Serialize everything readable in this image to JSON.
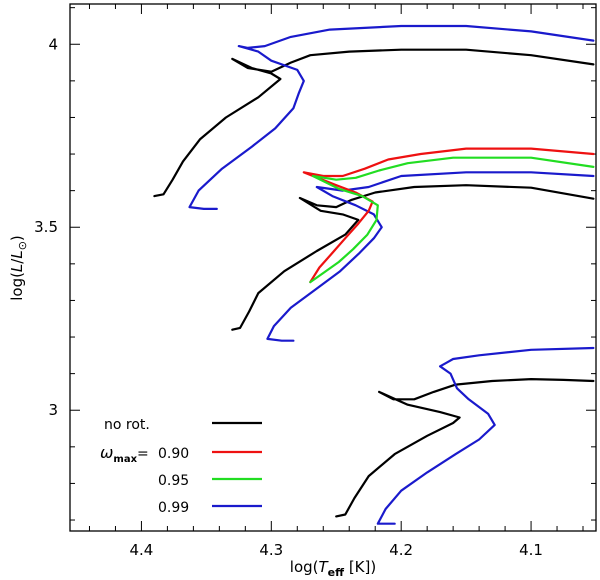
{
  "chart_data": {
    "type": "line",
    "title": "",
    "xlabel_prefix": "log(",
    "xlabel_var": "T",
    "xlabel_sub": "eff",
    "xlabel_suffix": " [K])",
    "ylabel_prefix": "log(",
    "ylabel_var": "L",
    "ylabel_mid": "/",
    "ylabel_var2": "L",
    "ylabel_sub": "⊙",
    "ylabel_suffix": ")",
    "xlim": [
      4.455,
      4.05
    ],
    "ylim": [
      2.67,
      4.11
    ],
    "xticks": [
      4.4,
      4.3,
      4.2,
      4.1
    ],
    "xtick_labels": [
      "4.4",
      "4.3",
      "4.2",
      "4.1"
    ],
    "yticks": [
      3.0,
      3.5,
      4.0
    ],
    "ytick_labels": [
      "3",
      "3.5",
      "4"
    ],
    "legend": {
      "placement": "bottom-left",
      "entries": [
        {
          "label": "no rot.",
          "prefix": "",
          "color": "#000000"
        },
        {
          "label": "0.90",
          "prefix": "ω",
          "prefix_sub": "max",
          "prefix_eq": "=",
          "color": "#ee1111"
        },
        {
          "label": "0.95",
          "prefix": "",
          "color": "#22dd22"
        },
        {
          "label": "0.99",
          "prefix": "",
          "color": "#1a1acc"
        }
      ]
    },
    "series": [
      {
        "name": "no rot. (upper)",
        "color": "#000000",
        "points": [
          [
            4.39,
            3.585
          ],
          [
            4.383,
            3.59
          ],
          [
            4.376,
            3.63
          ],
          [
            4.368,
            3.68
          ],
          [
            4.355,
            3.74
          ],
          [
            4.335,
            3.8
          ],
          [
            4.31,
            3.855
          ],
          [
            4.293,
            3.905
          ],
          [
            4.3,
            3.92
          ],
          [
            4.315,
            3.935
          ],
          [
            4.33,
            3.96
          ],
          [
            4.318,
            3.935
          ],
          [
            4.3,
            3.925
          ],
          [
            4.285,
            3.95
          ],
          [
            4.27,
            3.97
          ],
          [
            4.24,
            3.98
          ],
          [
            4.2,
            3.985
          ],
          [
            4.15,
            3.985
          ],
          [
            4.1,
            3.97
          ],
          [
            4.052,
            3.945
          ]
        ]
      },
      {
        "name": "no rot. (middle)",
        "color": "#000000",
        "points": [
          [
            4.33,
            3.22
          ],
          [
            4.324,
            3.225
          ],
          [
            4.317,
            3.27
          ],
          [
            4.31,
            3.32
          ],
          [
            4.29,
            3.38
          ],
          [
            4.265,
            3.435
          ],
          [
            4.243,
            3.48
          ],
          [
            4.233,
            3.52
          ],
          [
            4.245,
            3.535
          ],
          [
            4.262,
            3.545
          ],
          [
            4.278,
            3.58
          ],
          [
            4.265,
            3.56
          ],
          [
            4.25,
            3.555
          ],
          [
            4.238,
            3.575
          ],
          [
            4.22,
            3.595
          ],
          [
            4.19,
            3.61
          ],
          [
            4.15,
            3.615
          ],
          [
            4.1,
            3.608
          ],
          [
            4.052,
            3.578
          ]
        ]
      },
      {
        "name": "no rot. (lower)",
        "color": "#000000",
        "points": [
          [
            4.25,
            2.71
          ],
          [
            4.243,
            2.715
          ],
          [
            4.236,
            2.76
          ],
          [
            4.225,
            2.82
          ],
          [
            4.205,
            2.88
          ],
          [
            4.18,
            2.93
          ],
          [
            4.16,
            2.965
          ],
          [
            4.155,
            2.98
          ],
          [
            4.17,
            2.995
          ],
          [
            4.195,
            3.015
          ],
          [
            4.217,
            3.05
          ],
          [
            4.206,
            3.03
          ],
          [
            4.19,
            3.03
          ],
          [
            4.175,
            3.05
          ],
          [
            4.158,
            3.07
          ],
          [
            4.13,
            3.08
          ],
          [
            4.1,
            3.085
          ],
          [
            4.075,
            3.083
          ],
          [
            4.052,
            3.08
          ]
        ]
      },
      {
        "name": "ω=0.99 (upper)",
        "color": "#1a1acc",
        "points": [
          [
            4.342,
            3.55
          ],
          [
            4.352,
            3.55
          ],
          [
            4.363,
            3.555
          ],
          [
            4.356,
            3.6
          ],
          [
            4.338,
            3.66
          ],
          [
            4.315,
            3.72
          ],
          [
            4.297,
            3.77
          ],
          [
            4.283,
            3.825
          ],
          [
            4.279,
            3.865
          ],
          [
            4.275,
            3.9
          ],
          [
            4.28,
            3.93
          ],
          [
            4.3,
            3.955
          ],
          [
            4.31,
            3.98
          ],
          [
            4.325,
            3.995
          ],
          [
            4.318,
            3.99
          ],
          [
            4.305,
            3.995
          ],
          [
            4.285,
            4.02
          ],
          [
            4.255,
            4.04
          ],
          [
            4.2,
            4.05
          ],
          [
            4.15,
            4.05
          ],
          [
            4.1,
            4.035
          ],
          [
            4.052,
            4.01
          ]
        ]
      },
      {
        "name": "ω=0.99 (middle)",
        "color": "#1a1acc",
        "points": [
          [
            4.283,
            3.19
          ],
          [
            4.292,
            3.19
          ],
          [
            4.303,
            3.195
          ],
          [
            4.298,
            3.23
          ],
          [
            4.285,
            3.28
          ],
          [
            4.266,
            3.33
          ],
          [
            4.247,
            3.38
          ],
          [
            4.232,
            3.43
          ],
          [
            4.221,
            3.47
          ],
          [
            4.215,
            3.5
          ],
          [
            4.221,
            3.535
          ],
          [
            4.235,
            3.56
          ],
          [
            4.253,
            3.585
          ],
          [
            4.265,
            3.61
          ],
          [
            4.245,
            3.6
          ],
          [
            4.225,
            3.61
          ],
          [
            4.2,
            3.64
          ],
          [
            4.15,
            3.65
          ],
          [
            4.1,
            3.65
          ],
          [
            4.052,
            3.64
          ]
        ]
      },
      {
        "name": "ω=0.99 (lower)",
        "color": "#1a1acc",
        "points": [
          [
            4.205,
            2.69
          ],
          [
            4.213,
            2.69
          ],
          [
            4.218,
            2.69
          ],
          [
            4.212,
            2.73
          ],
          [
            4.2,
            2.78
          ],
          [
            4.18,
            2.83
          ],
          [
            4.158,
            2.88
          ],
          [
            4.14,
            2.92
          ],
          [
            4.128,
            2.96
          ],
          [
            4.133,
            2.99
          ],
          [
            4.148,
            3.03
          ],
          [
            4.157,
            3.06
          ],
          [
            4.162,
            3.1
          ],
          [
            4.17,
            3.12
          ],
          [
            4.165,
            3.13
          ],
          [
            4.16,
            3.14
          ],
          [
            4.14,
            3.15
          ],
          [
            4.1,
            3.165
          ],
          [
            4.052,
            3.17
          ]
        ]
      },
      {
        "name": "ω=0.90",
        "color": "#ee1111",
        "points": [
          [
            4.27,
            3.35
          ],
          [
            4.263,
            3.39
          ],
          [
            4.253,
            3.43
          ],
          [
            4.243,
            3.47
          ],
          [
            4.233,
            3.51
          ],
          [
            4.225,
            3.545
          ],
          [
            4.222,
            3.57
          ],
          [
            4.235,
            3.595
          ],
          [
            4.25,
            3.615
          ],
          [
            4.275,
            3.65
          ],
          [
            4.26,
            3.64
          ],
          [
            4.245,
            3.64
          ],
          [
            4.228,
            3.66
          ],
          [
            4.21,
            3.685
          ],
          [
            4.185,
            3.7
          ],
          [
            4.15,
            3.715
          ],
          [
            4.1,
            3.715
          ],
          [
            4.052,
            3.7
          ]
        ]
      },
      {
        "name": "ω=0.95",
        "color": "#22dd22",
        "points": [
          [
            4.27,
            3.35
          ],
          [
            4.26,
            3.375
          ],
          [
            4.248,
            3.405
          ],
          [
            4.237,
            3.44
          ],
          [
            4.226,
            3.48
          ],
          [
            4.219,
            3.52
          ],
          [
            4.218,
            3.56
          ],
          [
            4.23,
            3.585
          ],
          [
            4.248,
            3.605
          ],
          [
            4.268,
            3.64
          ],
          [
            4.25,
            3.63
          ],
          [
            4.235,
            3.635
          ],
          [
            4.217,
            3.655
          ],
          [
            4.195,
            3.675
          ],
          [
            4.16,
            3.69
          ],
          [
            4.1,
            3.69
          ],
          [
            4.052,
            3.665
          ]
        ]
      }
    ]
  }
}
